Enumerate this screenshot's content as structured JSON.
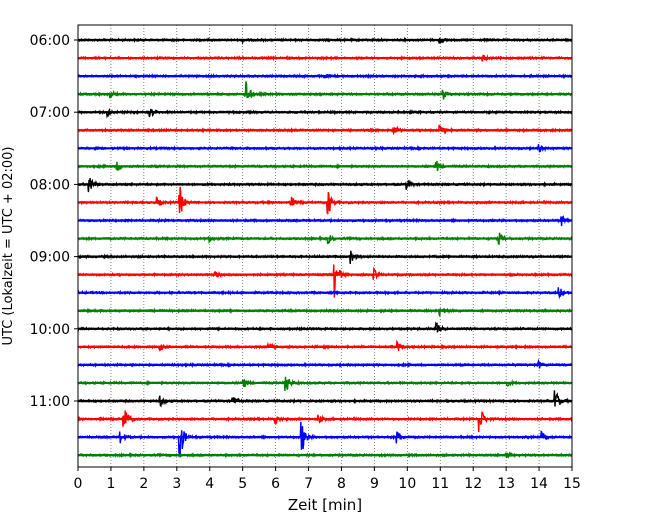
{
  "chart_data": {
    "type": "line",
    "title": "",
    "xlabel": "Zeit  [min]",
    "ylabel": "UTC (Lokalzeit = UTC + 02:00)",
    "xlim": [
      0,
      15
    ],
    "x_ticks": [
      0,
      1,
      2,
      3,
      4,
      5,
      6,
      7,
      8,
      9,
      10,
      11,
      12,
      13,
      14,
      15
    ],
    "x_tick_labels": [
      "0",
      "1",
      "2",
      "3",
      "4",
      "5",
      "6",
      "7",
      "8",
      "9",
      "10",
      "11",
      "12",
      "13",
      "14",
      "15"
    ],
    "y_ticks": [
      {
        "label": "06:00",
        "trace_index": 0
      },
      {
        "label": "07:00",
        "trace_index": 4
      },
      {
        "label": "08:00",
        "trace_index": 8
      },
      {
        "label": "09:00",
        "trace_index": 12
      },
      {
        "label": "10:00",
        "trace_index": 16
      },
      {
        "label": "11:00",
        "trace_index": 20
      }
    ],
    "grid": "vertical dotted at each minute",
    "trace_colors": [
      "#000000",
      "#ff0000",
      "#0000ff",
      "#008000"
    ],
    "traces": [
      {
        "start": "06:00",
        "events": [
          {
            "t": 11.0,
            "a": 0.2
          },
          {
            "t": 5.0,
            "a": 0.1
          }
        ]
      },
      {
        "start": "06:15",
        "events": [
          {
            "t": 12.3,
            "a": 0.2
          }
        ]
      },
      {
        "start": "06:30",
        "events": [
          {
            "t": 7.5,
            "a": 0.1
          }
        ]
      },
      {
        "start": "06:45",
        "events": [
          {
            "t": 5.1,
            "a": 0.9
          },
          {
            "t": 11.1,
            "a": 0.3
          },
          {
            "t": 1.0,
            "a": 0.2
          }
        ]
      },
      {
        "start": "07:00",
        "events": [
          {
            "t": 2.2,
            "a": 0.3
          },
          {
            "t": 0.9,
            "a": 0.2
          }
        ]
      },
      {
        "start": "07:15",
        "events": [
          {
            "t": 9.6,
            "a": 0.3
          },
          {
            "t": 11.0,
            "a": 0.3
          }
        ]
      },
      {
        "start": "07:30",
        "events": [
          {
            "t": 14.0,
            "a": 0.2
          }
        ]
      },
      {
        "start": "07:45",
        "events": [
          {
            "t": 1.2,
            "a": 0.3
          },
          {
            "t": 10.9,
            "a": 0.3
          }
        ]
      },
      {
        "start": "08:00",
        "events": [
          {
            "t": 0.35,
            "a": 0.7
          },
          {
            "t": 10.0,
            "a": 0.3
          }
        ]
      },
      {
        "start": "08:15",
        "events": [
          {
            "t": 3.1,
            "a": 0.9
          },
          {
            "t": 7.6,
            "a": 0.8
          },
          {
            "t": 2.4,
            "a": 0.3
          },
          {
            "t": 6.5,
            "a": 0.3
          }
        ]
      },
      {
        "start": "08:30",
        "events": [
          {
            "t": 14.7,
            "a": 0.3
          }
        ]
      },
      {
        "start": "08:45",
        "events": [
          {
            "t": 7.6,
            "a": 0.3
          },
          {
            "t": 12.8,
            "a": 0.3
          },
          {
            "t": 4.0,
            "a": 0.2
          }
        ]
      },
      {
        "start": "09:00",
        "events": [
          {
            "t": 8.3,
            "a": 0.4
          }
        ]
      },
      {
        "start": "09:15",
        "events": [
          {
            "t": 7.8,
            "a": 1.4
          },
          {
            "t": 9.0,
            "a": 0.3
          },
          {
            "t": 4.2,
            "a": 0.2
          }
        ]
      },
      {
        "start": "09:30",
        "events": [
          {
            "t": 14.6,
            "a": 0.4
          }
        ]
      },
      {
        "start": "09:45",
        "events": [
          {
            "t": 11.0,
            "a": 0.4
          }
        ]
      },
      {
        "start": "10:00",
        "events": [
          {
            "t": 10.9,
            "a": 0.3
          }
        ]
      },
      {
        "start": "10:15",
        "events": [
          {
            "t": 9.7,
            "a": 0.3
          },
          {
            "t": 2.5,
            "a": 0.2
          },
          {
            "t": 5.8,
            "a": 0.2
          }
        ]
      },
      {
        "start": "10:30",
        "events": [
          {
            "t": 14.0,
            "a": 0.2
          }
        ]
      },
      {
        "start": "10:45",
        "events": [
          {
            "t": 6.3,
            "a": 0.8
          },
          {
            "t": 5.0,
            "a": 0.4
          },
          {
            "t": 13.0,
            "a": 0.2
          }
        ]
      },
      {
        "start": "11:00",
        "events": [
          {
            "t": 14.5,
            "a": 0.8
          },
          {
            "t": 2.5,
            "a": 0.3
          },
          {
            "t": 4.7,
            "a": 0.3
          }
        ]
      },
      {
        "start": "11:15",
        "events": [
          {
            "t": 1.4,
            "a": 1.0
          },
          {
            "t": 12.2,
            "a": 1.0
          },
          {
            "t": 6.0,
            "a": 0.3
          },
          {
            "t": 7.3,
            "a": 0.3
          }
        ]
      },
      {
        "start": "11:30",
        "events": [
          {
            "t": 3.1,
            "a": 1.4
          },
          {
            "t": 6.8,
            "a": 1.0
          },
          {
            "t": 1.3,
            "a": 0.4
          },
          {
            "t": 9.7,
            "a": 0.4
          },
          {
            "t": 14.1,
            "a": 0.3
          }
        ]
      },
      {
        "start": "11:45",
        "events": [
          {
            "t": 13.0,
            "a": 0.2
          }
        ]
      }
    ]
  }
}
